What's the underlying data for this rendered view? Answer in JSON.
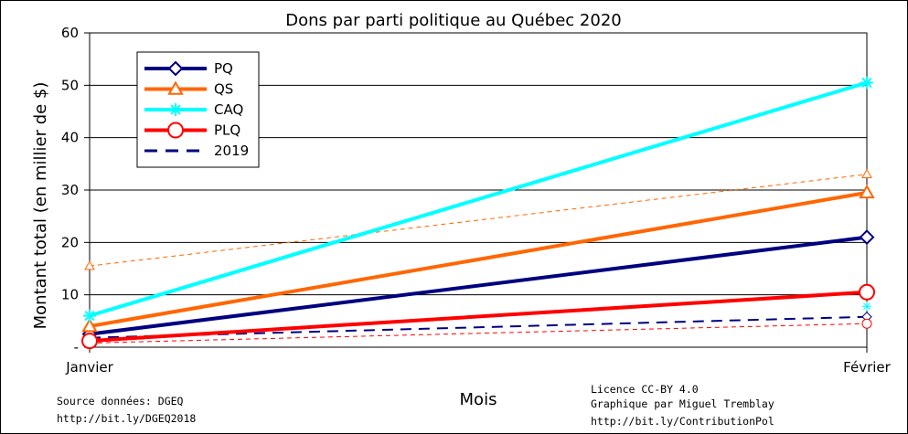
{
  "chart_data": {
    "type": "line",
    "title": "Dons par parti politique au Québec 2020",
    "xlabel": "Mois",
    "ylabel": "Montant total (en millier de $)",
    "categories": [
      "Janvier",
      "Février"
    ],
    "ylim": [
      0,
      60
    ],
    "yticks": [
      "-",
      "10",
      "20",
      "30",
      "40",
      "50",
      "60"
    ],
    "grid": true,
    "legend_placement": "top-left",
    "series": [
      {
        "name": "PQ",
        "color": "#000080",
        "marker": "diamond",
        "style": "solid",
        "values": [
          2.5,
          21
        ]
      },
      {
        "name": "QS",
        "color": "#ff6600",
        "marker": "triangle",
        "style": "solid",
        "values": [
          4,
          29.5
        ]
      },
      {
        "name": "CAQ",
        "color": "#00ffff",
        "marker": "asterisk",
        "style": "solid",
        "values": [
          6,
          50.5
        ]
      },
      {
        "name": "PLQ",
        "color": "#ff0000",
        "marker": "circle",
        "style": "solid",
        "values": [
          1.2,
          10.5
        ]
      }
    ],
    "series_2019": [
      {
        "party": "PQ",
        "color": "#000080",
        "marker": "diamond",
        "values": [
          1.8,
          5.8
        ]
      },
      {
        "party": "QS",
        "color": "#ff6600",
        "marker": "triangle",
        "values": [
          15.5,
          33
        ]
      },
      {
        "party": "CAQ",
        "color": "#00ffff",
        "marker": "asterisk",
        "values": [
          null,
          7.8
        ]
      },
      {
        "party": "PLQ",
        "color": "#ff0000",
        "marker": "circle",
        "values": [
          0.8,
          4.5
        ]
      }
    ],
    "legend_2019": {
      "label": "2019",
      "color": "#000080",
      "style": "dashed"
    }
  },
  "notes": {
    "source_line1": "Source données: DGEQ",
    "source_line2": "http://bit.ly/DGEQ2018",
    "license_line1": "Licence CC-BY 4.0",
    "license_line2": "Graphique par Miguel Tremblay",
    "license_line3": "http://bit.ly/ContributionPol"
  }
}
